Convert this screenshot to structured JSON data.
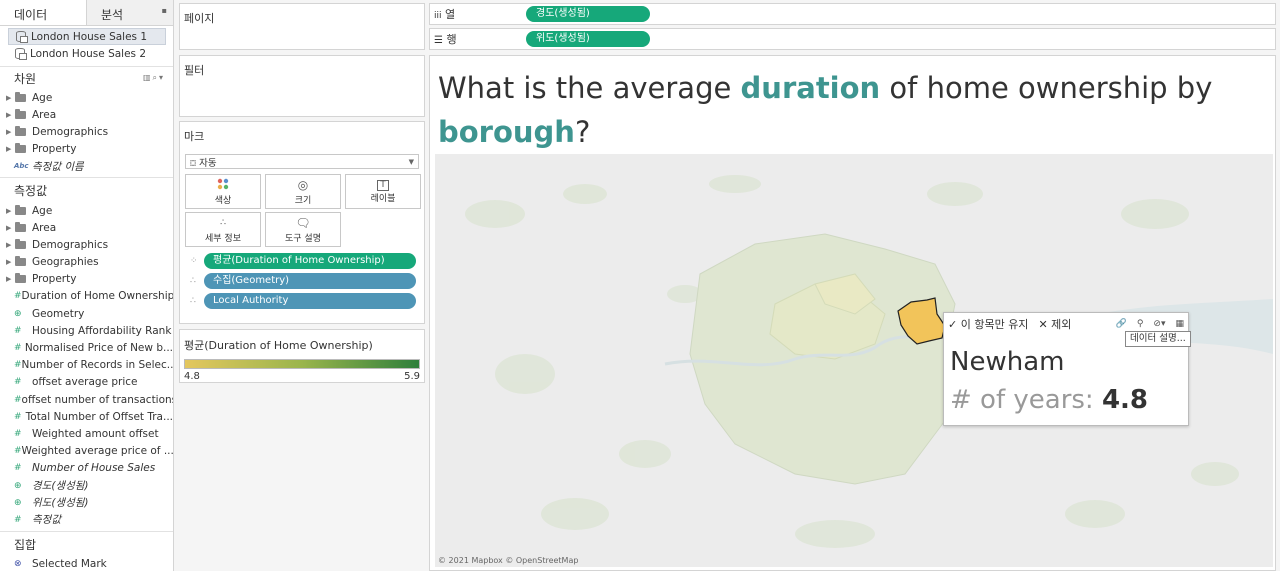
{
  "datapane": {
    "tabs": [
      "데이터",
      "분석"
    ],
    "datasources": [
      "London House Sales 1",
      "London House Sales 2"
    ],
    "dimensions_title": "차원",
    "dimensions": [
      {
        "label": "Age",
        "kind": "folder"
      },
      {
        "label": "Area",
        "kind": "folder"
      },
      {
        "label": "Demographics",
        "kind": "folder"
      },
      {
        "label": "Property",
        "kind": "folder"
      },
      {
        "label": "측정값 이름",
        "kind": "abc",
        "italic": true
      }
    ],
    "measures_title": "측정값",
    "measures": [
      {
        "label": "Age",
        "kind": "folder"
      },
      {
        "label": "Area",
        "kind": "folder"
      },
      {
        "label": "Demographics",
        "kind": "folder"
      },
      {
        "label": "Geographies",
        "kind": "folder"
      },
      {
        "label": "Property",
        "kind": "folder"
      },
      {
        "label": "Duration of Home Ownership",
        "kind": "number"
      },
      {
        "label": "Geometry",
        "kind": "globe"
      },
      {
        "label": "Housing Affordability Rank",
        "kind": "number"
      },
      {
        "label": "Normalised Price of New b...",
        "kind": "number"
      },
      {
        "label": "Number of Records in Selec...",
        "kind": "number"
      },
      {
        "label": "offset average price",
        "kind": "number"
      },
      {
        "label": "offset number of transactions",
        "kind": "number"
      },
      {
        "label": "Total Number of Offset Tra...",
        "kind": "number"
      },
      {
        "label": "Weighted amount offset",
        "kind": "number"
      },
      {
        "label": "Weighted average price of ...",
        "kind": "number"
      },
      {
        "label": "Number of House Sales",
        "kind": "number",
        "italic": true
      },
      {
        "label": "경도(생성됨)",
        "kind": "globe",
        "italic": true
      },
      {
        "label": "위도(생성됨)",
        "kind": "globe",
        "italic": true
      },
      {
        "label": "측정값",
        "kind": "number",
        "italic": true
      }
    ],
    "sets_title": "집합",
    "sets": [
      {
        "label": "Selected Mark"
      }
    ]
  },
  "shelves": {
    "pages_title": "페이지",
    "filters_title": "필터",
    "marks_title": "마크",
    "mark_type": "자동",
    "mark_buttons": [
      "색상",
      "크기",
      "레이블",
      "세부 정보",
      "도구 설명"
    ],
    "mark_pills": [
      {
        "label": "평균(Duration of Home Ownership)",
        "color": "#16a87a"
      },
      {
        "label": "수집(Geometry)",
        "color": "#4e95b6"
      },
      {
        "label": "Local Authority",
        "color": "#4e95b6"
      }
    ],
    "legend_title": "평균(Duration of Home Ownership)",
    "legend_min": "4.8",
    "legend_max": "5.9",
    "columns_label": "열",
    "columns_pill": "경도(생성됨)",
    "rows_label": "행",
    "rows_pill": "위도(생성됨)"
  },
  "viz": {
    "title_parts": [
      "What is the average ",
      "duration",
      " of home ownership by ",
      "borough",
      "?"
    ],
    "attribution": "© 2021 Mapbox © OpenStreetMap",
    "highlight_color": "#f2c45a"
  },
  "tooltip": {
    "keep_only": "이 항목만 유지",
    "exclude": "제외",
    "borough": "Newham",
    "metric_label": "# of years:",
    "metric_value": "4.8",
    "popup": "데이터 설명..."
  }
}
